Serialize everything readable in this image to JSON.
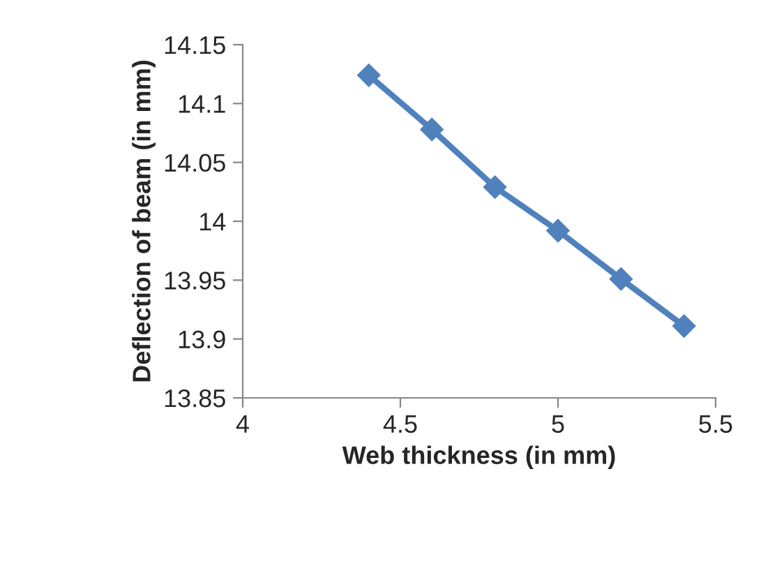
{
  "chart_data": {
    "type": "line",
    "xlabel": "Web thickness (in mm)",
    "ylabel": "Deflection of beam (in mm)",
    "x": [
      4.4,
      4.6,
      4.8,
      5.0,
      5.2,
      5.4
    ],
    "series": [
      {
        "color": "#4f81bd",
        "values": [
          14.124,
          14.078,
          14.029,
          13.992,
          13.951,
          13.911
        ]
      }
    ],
    "xlim": [
      4,
      5.5
    ],
    "xticks": [
      4,
      4.5,
      5,
      5.5
    ],
    "ylim": [
      13.85,
      14.15
    ],
    "yticks": [
      13.85,
      13.9,
      13.95,
      14,
      14.05,
      14.1,
      14.15
    ],
    "marker": "diamond",
    "line_style": "solid",
    "grid": false,
    "legend": false
  }
}
